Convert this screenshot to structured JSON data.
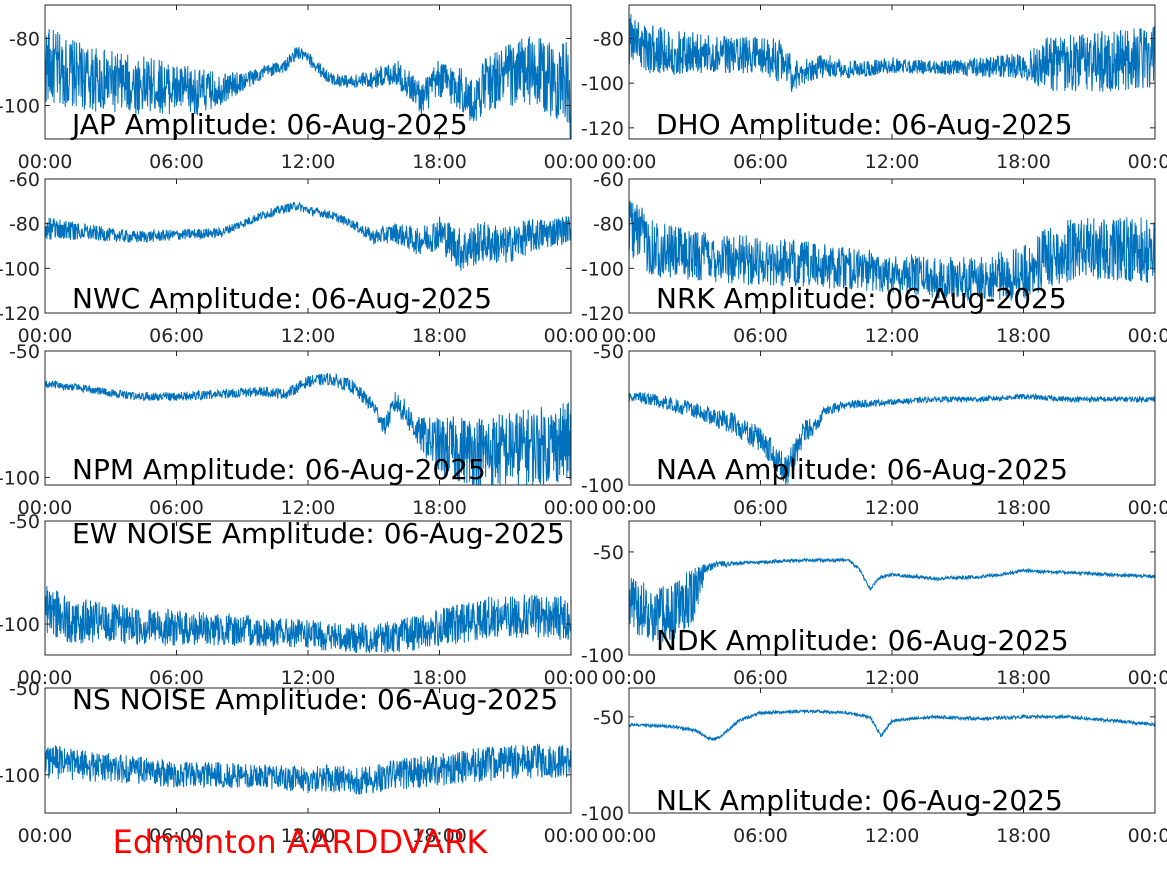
{
  "footer": {
    "text": "Edmonton AARDDVARK",
    "color": "#ff0000"
  },
  "colors": {
    "trace": "#0072bd",
    "axis": "#262626",
    "background": "#ffffff"
  },
  "chart_data": [
    {
      "type": "line",
      "title": "JAP Amplitude: 06-Aug-2025",
      "x_ticks": [
        "00:00",
        "06:00",
        "12:00",
        "18:00",
        "00:00"
      ],
      "y_ticks": [
        "-80",
        "-100"
      ],
      "ylim": [
        -110,
        -70
      ],
      "anchors": [
        [
          0,
          -88
        ],
        [
          1,
          -90
        ],
        [
          2,
          -92
        ],
        [
          3,
          -93
        ],
        [
          4,
          -94
        ],
        [
          5,
          -94
        ],
        [
          6,
          -95
        ],
        [
          7,
          -96
        ],
        [
          8,
          -95
        ],
        [
          9,
          -93
        ],
        [
          10,
          -90
        ],
        [
          11,
          -88
        ],
        [
          11.5,
          -84
        ],
        [
          12,
          -86
        ],
        [
          13,
          -92
        ],
        [
          14,
          -93
        ],
        [
          15,
          -92
        ],
        [
          16,
          -90
        ],
        [
          16.8,
          -95
        ],
        [
          17.2,
          -98
        ],
        [
          18,
          -92
        ],
        [
          19,
          -95
        ],
        [
          19.5,
          -100
        ],
        [
          20,
          -94
        ],
        [
          21,
          -91
        ],
        [
          22,
          -90
        ],
        [
          23,
          -92
        ],
        [
          23.8,
          -93
        ],
        [
          24,
          -105
        ]
      ],
      "noise": [
        [
          0,
          12
        ],
        [
          1.5,
          10
        ],
        [
          4,
          9
        ],
        [
          7,
          7
        ],
        [
          9,
          3
        ],
        [
          10,
          2
        ],
        [
          14,
          2
        ],
        [
          17,
          5
        ],
        [
          20,
          8
        ],
        [
          22,
          11
        ],
        [
          24,
          12
        ]
      ]
    },
    {
      "type": "line",
      "title": "DHO Amplitude: 06-Aug-2025",
      "x_ticks": [
        "00:00",
        "06:00",
        "12:00",
        "18:00",
        "00:00"
      ],
      "y_ticks": [
        "-80",
        "-100",
        "-120"
      ],
      "ylim": [
        -125,
        -65
      ],
      "anchors": [
        [
          0,
          -80
        ],
        [
          1,
          -85
        ],
        [
          2,
          -86
        ],
        [
          4,
          -87
        ],
        [
          6,
          -88
        ],
        [
          7,
          -90
        ],
        [
          7.5,
          -97
        ],
        [
          8,
          -95
        ],
        [
          9,
          -92
        ],
        [
          10,
          -94
        ],
        [
          12,
          -92
        ],
        [
          14,
          -93
        ],
        [
          16,
          -93
        ],
        [
          18,
          -92
        ],
        [
          20,
          -91
        ],
        [
          22,
          -90
        ],
        [
          24,
          -88
        ]
      ],
      "noise": [
        [
          0,
          12
        ],
        [
          2,
          10
        ],
        [
          5,
          8
        ],
        [
          7,
          10
        ],
        [
          8,
          6
        ],
        [
          10,
          4
        ],
        [
          14,
          3
        ],
        [
          18,
          6
        ],
        [
          19,
          12
        ],
        [
          22,
          14
        ],
        [
          24,
          14
        ]
      ]
    },
    {
      "type": "line",
      "title": "NWC Amplitude: 06-Aug-2025",
      "x_ticks": [
        "00:00",
        "06:00",
        "12:00",
        "18:00",
        "00:00"
      ],
      "y_ticks": [
        "-60",
        "-80",
        "-100",
        "-120"
      ],
      "ylim": [
        -120,
        -60
      ],
      "anchors": [
        [
          0,
          -82
        ],
        [
          2,
          -84
        ],
        [
          4,
          -86
        ],
        [
          6,
          -85
        ],
        [
          8,
          -84
        ],
        [
          9,
          -80
        ],
        [
          10,
          -76
        ],
        [
          11,
          -73
        ],
        [
          11.5,
          -72
        ],
        [
          12,
          -74
        ],
        [
          13,
          -76
        ],
        [
          14,
          -80
        ],
        [
          15,
          -86
        ],
        [
          16,
          -84
        ],
        [
          17,
          -88
        ],
        [
          18,
          -84
        ],
        [
          19,
          -92
        ],
        [
          20,
          -88
        ],
        [
          21,
          -90
        ],
        [
          22,
          -86
        ],
        [
          23,
          -84
        ],
        [
          24,
          -82
        ]
      ],
      "noise": [
        [
          0,
          5
        ],
        [
          3,
          3
        ],
        [
          9,
          2
        ],
        [
          14,
          2
        ],
        [
          17,
          6
        ],
        [
          19,
          10
        ],
        [
          22,
          8
        ],
        [
          24,
          6
        ]
      ]
    },
    {
      "type": "line",
      "title": "NRK Amplitude: 06-Aug-2025",
      "x_ticks": [
        "00:00",
        "06:00",
        "12:00",
        "18:00",
        "00:00"
      ],
      "y_ticks": [
        "-60",
        "-80",
        "-100",
        "-120"
      ],
      "ylim": [
        -120,
        -60
      ],
      "anchors": [
        [
          0,
          -80
        ],
        [
          1,
          -90
        ],
        [
          2,
          -93
        ],
        [
          4,
          -95
        ],
        [
          6,
          -97
        ],
        [
          8,
          -98
        ],
        [
          10,
          -100
        ],
        [
          12,
          -102
        ],
        [
          14,
          -104
        ],
        [
          16,
          -105
        ],
        [
          18,
          -102
        ],
        [
          19,
          -96
        ],
        [
          20,
          -92
        ],
        [
          22,
          -91
        ],
        [
          24,
          -92
        ]
      ],
      "noise": [
        [
          0,
          14
        ],
        [
          2,
          12
        ],
        [
          6,
          11
        ],
        [
          12,
          9
        ],
        [
          16,
          10
        ],
        [
          19,
          14
        ],
        [
          24,
          15
        ]
      ]
    },
    {
      "type": "line",
      "title": "NPM Amplitude: 06-Aug-2025",
      "x_ticks": [
        "00:00",
        "06:00",
        "12:00",
        "18:00",
        "00:00"
      ],
      "y_ticks": [
        "-50",
        "-100"
      ],
      "ylim": [
        -103,
        -50
      ],
      "anchors": [
        [
          0,
          -63
        ],
        [
          2,
          -65
        ],
        [
          4,
          -68
        ],
        [
          6,
          -68
        ],
        [
          8,
          -67
        ],
        [
          10,
          -66
        ],
        [
          11,
          -67
        ],
        [
          12,
          -62
        ],
        [
          13,
          -61
        ],
        [
          14,
          -64
        ],
        [
          14.5,
          -68
        ],
        [
          15,
          -72
        ],
        [
          15.5,
          -80
        ],
        [
          16,
          -70
        ],
        [
          16.5,
          -75
        ],
        [
          17,
          -82
        ],
        [
          18,
          -88
        ],
        [
          20,
          -90
        ],
        [
          22,
          -88
        ],
        [
          24,
          -86
        ]
      ],
      "noise": [
        [
          0,
          1.5
        ],
        [
          11,
          2
        ],
        [
          15,
          3
        ],
        [
          17,
          6
        ],
        [
          18,
          12
        ],
        [
          20,
          15
        ],
        [
          24,
          16
        ]
      ]
    },
    {
      "type": "line",
      "title": "NAA Amplitude: 06-Aug-2025",
      "x_ticks": [
        "00:00",
        "06:00",
        "12:00",
        "18:00",
        "00:00"
      ],
      "y_ticks": [
        "-50",
        "-100"
      ],
      "ylim": [
        -100,
        -50
      ],
      "anchors": [
        [
          0,
          -67
        ],
        [
          1,
          -68
        ],
        [
          2,
          -70
        ],
        [
          3,
          -72
        ],
        [
          4,
          -75
        ],
        [
          5,
          -78
        ],
        [
          6,
          -83
        ],
        [
          6.8,
          -90
        ],
        [
          7.2,
          -95
        ],
        [
          7.6,
          -88
        ],
        [
          8,
          -80
        ],
        [
          8.5,
          -78
        ],
        [
          9,
          -72
        ],
        [
          10,
          -70
        ],
        [
          12,
          -69
        ],
        [
          14,
          -68
        ],
        [
          16,
          -68
        ],
        [
          18,
          -67
        ],
        [
          20,
          -68
        ],
        [
          22,
          -68
        ],
        [
          24,
          -68
        ]
      ],
      "noise": [
        [
          0,
          2
        ],
        [
          3,
          3
        ],
        [
          6,
          5
        ],
        [
          7.5,
          6
        ],
        [
          9,
          2
        ],
        [
          12,
          1
        ],
        [
          24,
          1
        ]
      ]
    },
    {
      "type": "line",
      "title": "EW NOISE Amplitude: 06-Aug-2025",
      "x_ticks": [
        "00:00",
        "06:00",
        "12:00",
        "18:00",
        "00:00"
      ],
      "y_ticks": [
        "-50",
        "-100"
      ],
      "ylim": [
        -115,
        -50
      ],
      "anchors": [
        [
          0,
          -92
        ],
        [
          1,
          -98
        ],
        [
          3,
          -100
        ],
        [
          6,
          -102
        ],
        [
          9,
          -103
        ],
        [
          12,
          -105
        ],
        [
          14,
          -107
        ],
        [
          16,
          -106
        ],
        [
          18,
          -102
        ],
        [
          20,
          -97
        ],
        [
          22,
          -96
        ],
        [
          24,
          -97
        ]
      ],
      "noise": [
        [
          0,
          12
        ],
        [
          3,
          10
        ],
        [
          8,
          8
        ],
        [
          12,
          7
        ],
        [
          16,
          8
        ],
        [
          19,
          10
        ],
        [
          24,
          11
        ]
      ]
    },
    {
      "type": "line",
      "title": "NDK Amplitude: 06-Aug-2025",
      "x_ticks": [
        "00:00",
        "06:00",
        "12:00",
        "18:00",
        "00:00"
      ],
      "y_ticks": [
        "-50",
        "-100"
      ],
      "ylim": [
        -100,
        -35
      ],
      "anchors": [
        [
          0,
          -75
        ],
        [
          1,
          -80
        ],
        [
          2,
          -80
        ],
        [
          3,
          -70
        ],
        [
          3.5,
          -58
        ],
        [
          4,
          -56
        ],
        [
          6,
          -55
        ],
        [
          8,
          -54
        ],
        [
          10,
          -54
        ],
        [
          10.5,
          -58
        ],
        [
          11,
          -68
        ],
        [
          11.5,
          -62
        ],
        [
          12,
          -61
        ],
        [
          14,
          -63
        ],
        [
          16,
          -62
        ],
        [
          17,
          -61
        ],
        [
          18,
          -59
        ],
        [
          20,
          -60
        ],
        [
          22,
          -61
        ],
        [
          24,
          -62
        ]
      ],
      "noise": [
        [
          0,
          14
        ],
        [
          3,
          14
        ],
        [
          3.5,
          2
        ],
        [
          5,
          0.8
        ],
        [
          24,
          0.8
        ]
      ]
    },
    {
      "type": "line",
      "title": "NS NOISE Amplitude: 06-Aug-2025",
      "x_ticks": [
        "00:00",
        "06:00",
        "12:00",
        "18:00",
        "00:00"
      ],
      "y_ticks": [
        "-50",
        "-100"
      ],
      "ylim": [
        -122,
        -50
      ],
      "anchors": [
        [
          0,
          -92
        ],
        [
          2,
          -95
        ],
        [
          4,
          -97
        ],
        [
          6,
          -100
        ],
        [
          8,
          -100
        ],
        [
          10,
          -101
        ],
        [
          12,
          -103
        ],
        [
          13,
          -102
        ],
        [
          14,
          -104
        ],
        [
          15,
          -102
        ],
        [
          16,
          -100
        ],
        [
          18,
          -97
        ],
        [
          20,
          -94
        ],
        [
          22,
          -92
        ],
        [
          24,
          -92
        ]
      ],
      "noise": [
        [
          0,
          10
        ],
        [
          4,
          8
        ],
        [
          10,
          7
        ],
        [
          13,
          8
        ],
        [
          16,
          9
        ],
        [
          20,
          10
        ],
        [
          24,
          10
        ]
      ]
    },
    {
      "type": "line",
      "title": "NLK Amplitude: 06-Aug-2025",
      "x_ticks": [
        "00:00",
        "06:00",
        "12:00",
        "18:00",
        "00:00"
      ],
      "y_ticks": [
        "-50",
        "-100"
      ],
      "ylim": [
        -100,
        -35
      ],
      "anchors": [
        [
          0,
          -54
        ],
        [
          2,
          -55
        ],
        [
          3,
          -57
        ],
        [
          3.8,
          -62
        ],
        [
          4.2,
          -60
        ],
        [
          5,
          -52
        ],
        [
          6,
          -48
        ],
        [
          8,
          -47
        ],
        [
          10,
          -48
        ],
        [
          11,
          -50
        ],
        [
          11.5,
          -60
        ],
        [
          12,
          -52
        ],
        [
          14,
          -50
        ],
        [
          16,
          -51
        ],
        [
          18,
          -50
        ],
        [
          20,
          -50
        ],
        [
          22,
          -52
        ],
        [
          24,
          -54
        ]
      ],
      "noise": [
        [
          0,
          0.8
        ],
        [
          24,
          0.8
        ]
      ]
    }
  ]
}
